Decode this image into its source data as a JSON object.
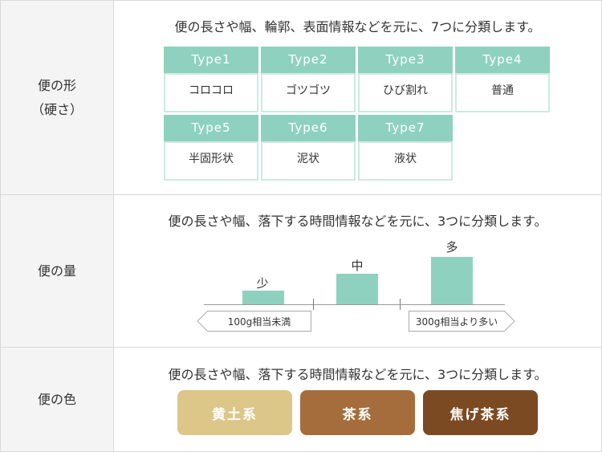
{
  "shape": {
    "heading_line1": "便の形",
    "heading_line2": "（硬さ）",
    "description": "便の長さや幅、輪郭、表面情報などを元に、7つに分類します。",
    "types": [
      {
        "name": "Type1",
        "label": "コロコロ"
      },
      {
        "name": "Type2",
        "label": "ゴツゴツ"
      },
      {
        "name": "Type3",
        "label": "ひび割れ"
      },
      {
        "name": "Type4",
        "label": "普通"
      },
      {
        "name": "Type5",
        "label": "半固形状"
      },
      {
        "name": "Type6",
        "label": "泥状"
      },
      {
        "name": "Type7",
        "label": "液状"
      }
    ]
  },
  "volume": {
    "heading": "便の量",
    "description": "便の長さや幅、落下する時間情報などを元に、3つに分類します。",
    "levels": [
      {
        "label": "少",
        "level": 1
      },
      {
        "label": "中",
        "level": 2
      },
      {
        "label": "多",
        "level": 3
      }
    ],
    "left_tag": "100g相当未満",
    "right_tag": "300g相当より多い"
  },
  "color": {
    "heading": "便の色",
    "description": "便の長さや幅、落下する時間情報などを元に、3つに分類します。",
    "options": [
      {
        "label": "黄土系",
        "color": "#dcc688"
      },
      {
        "label": "茶系",
        "color": "#a66d3c"
      },
      {
        "label": "焦げ茶系",
        "color": "#7c4a22"
      }
    ]
  },
  "colors": {
    "accent": "#8fd1bf",
    "cell_border": "#cdeae1",
    "header_bg": "#f4f4f4"
  }
}
